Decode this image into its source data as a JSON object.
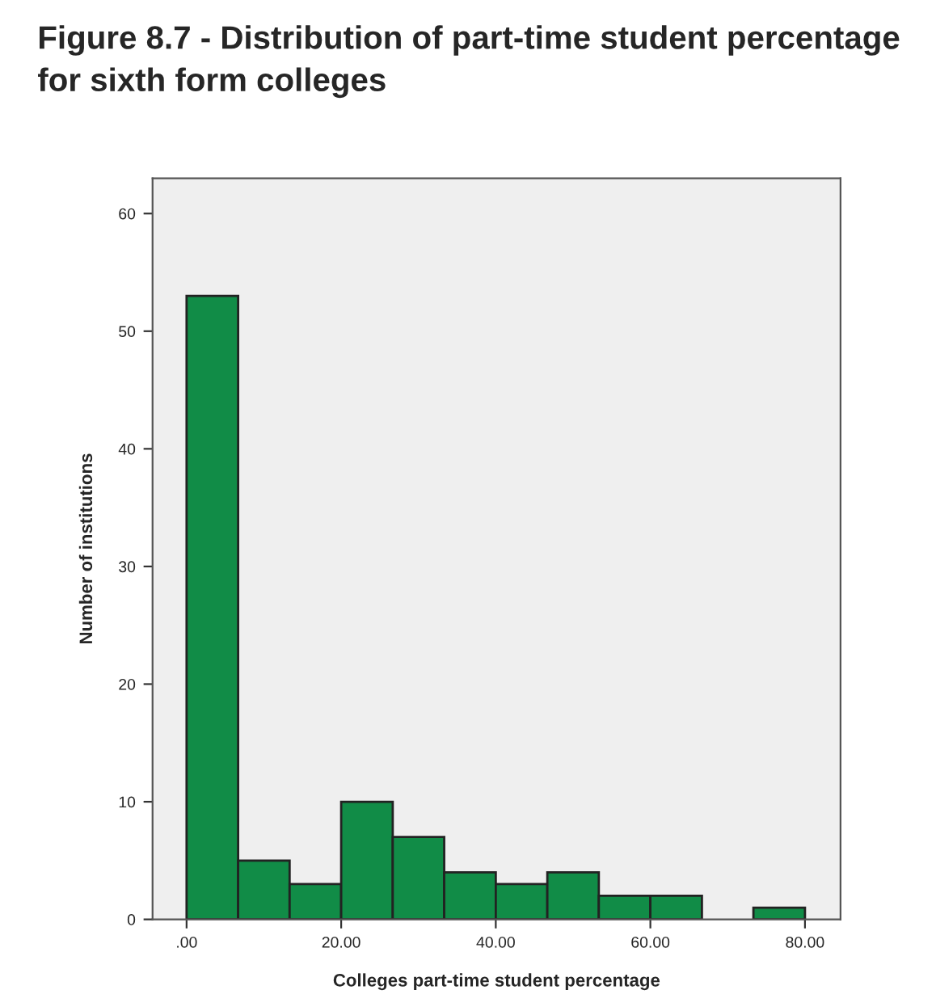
{
  "chart_data": {
    "type": "histogram",
    "title": "Figure 8.7 - Distribution of part-time student percentage for sixth form colleges",
    "xlabel": "Colleges part-time student percentage",
    "ylabel": "Number of institutions",
    "bins": [
      0,
      6.67,
      13.33,
      20,
      26.67,
      33.33,
      40,
      46.67,
      53.33,
      60,
      66.67,
      73.33,
      80
    ],
    "values": [
      53,
      5,
      3,
      10,
      7,
      4,
      3,
      4,
      2,
      2,
      0,
      1
    ],
    "color": "#118c47",
    "xlim": [
      -4.4,
      84.6
    ],
    "ylim": [
      0,
      63
    ],
    "xticks": [
      {
        "value": 0,
        "label": ".00"
      },
      {
        "value": 20,
        "label": "20.00"
      },
      {
        "value": 40,
        "label": "40.00"
      },
      {
        "value": 60,
        "label": "60.00"
      },
      {
        "value": 80,
        "label": "80.00"
      }
    ],
    "yticks": [
      0,
      10,
      20,
      30,
      40,
      50,
      60
    ],
    "grid": false
  }
}
